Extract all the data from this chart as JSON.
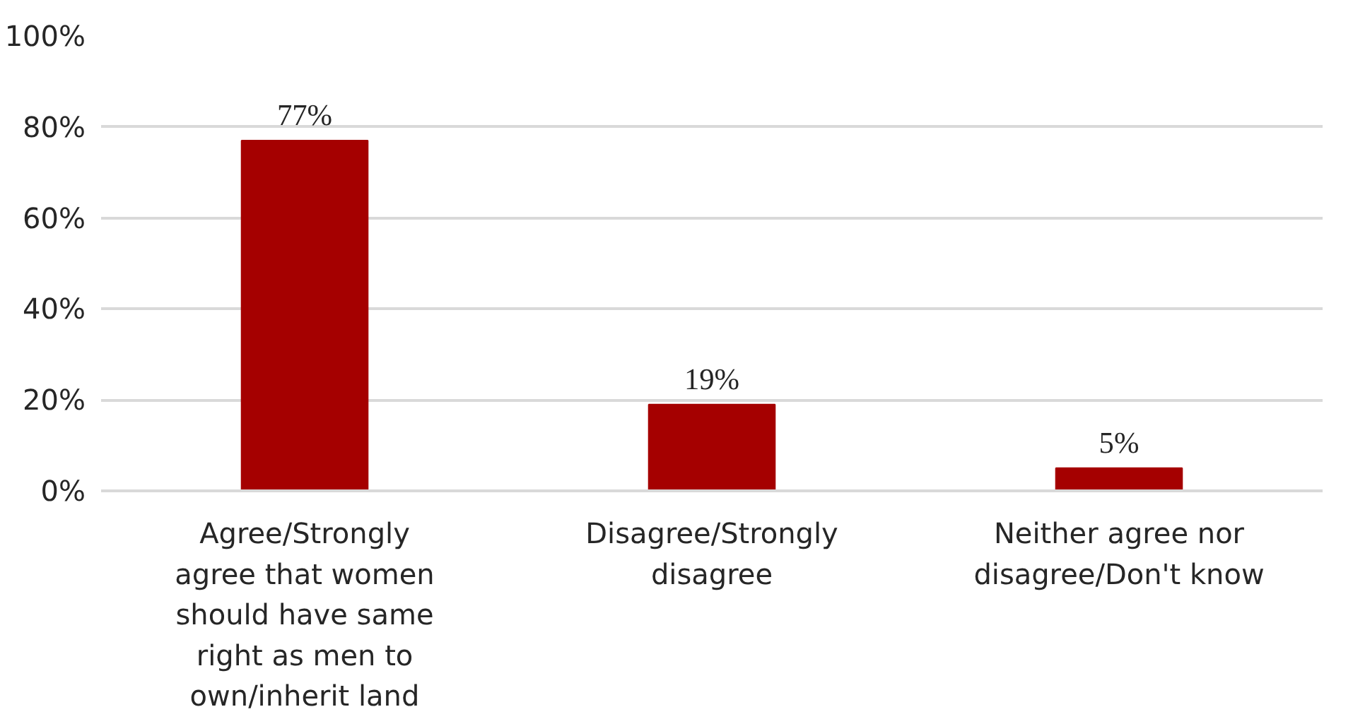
{
  "chart_data": {
    "type": "bar",
    "categories": [
      "Agree/Strongly agree that women should have same right as men to own/inherit land",
      "Disagree/Strongly disagree",
      "Neither agree nor disagree/Don't know"
    ],
    "values": [
      77,
      19,
      5
    ],
    "value_labels": [
      "77%",
      "19%",
      "5%"
    ],
    "color": "#a50000",
    "ylim": [
      0,
      100
    ],
    "yticks": [
      {
        "value": 0,
        "label": "0%"
      },
      {
        "value": 20,
        "label": "20%"
      },
      {
        "value": 40,
        "label": "40%"
      },
      {
        "value": 60,
        "label": "60%"
      },
      {
        "value": 80,
        "label": "80%"
      },
      {
        "value": 100,
        "label": "100%"
      }
    ],
    "grid": "y"
  }
}
